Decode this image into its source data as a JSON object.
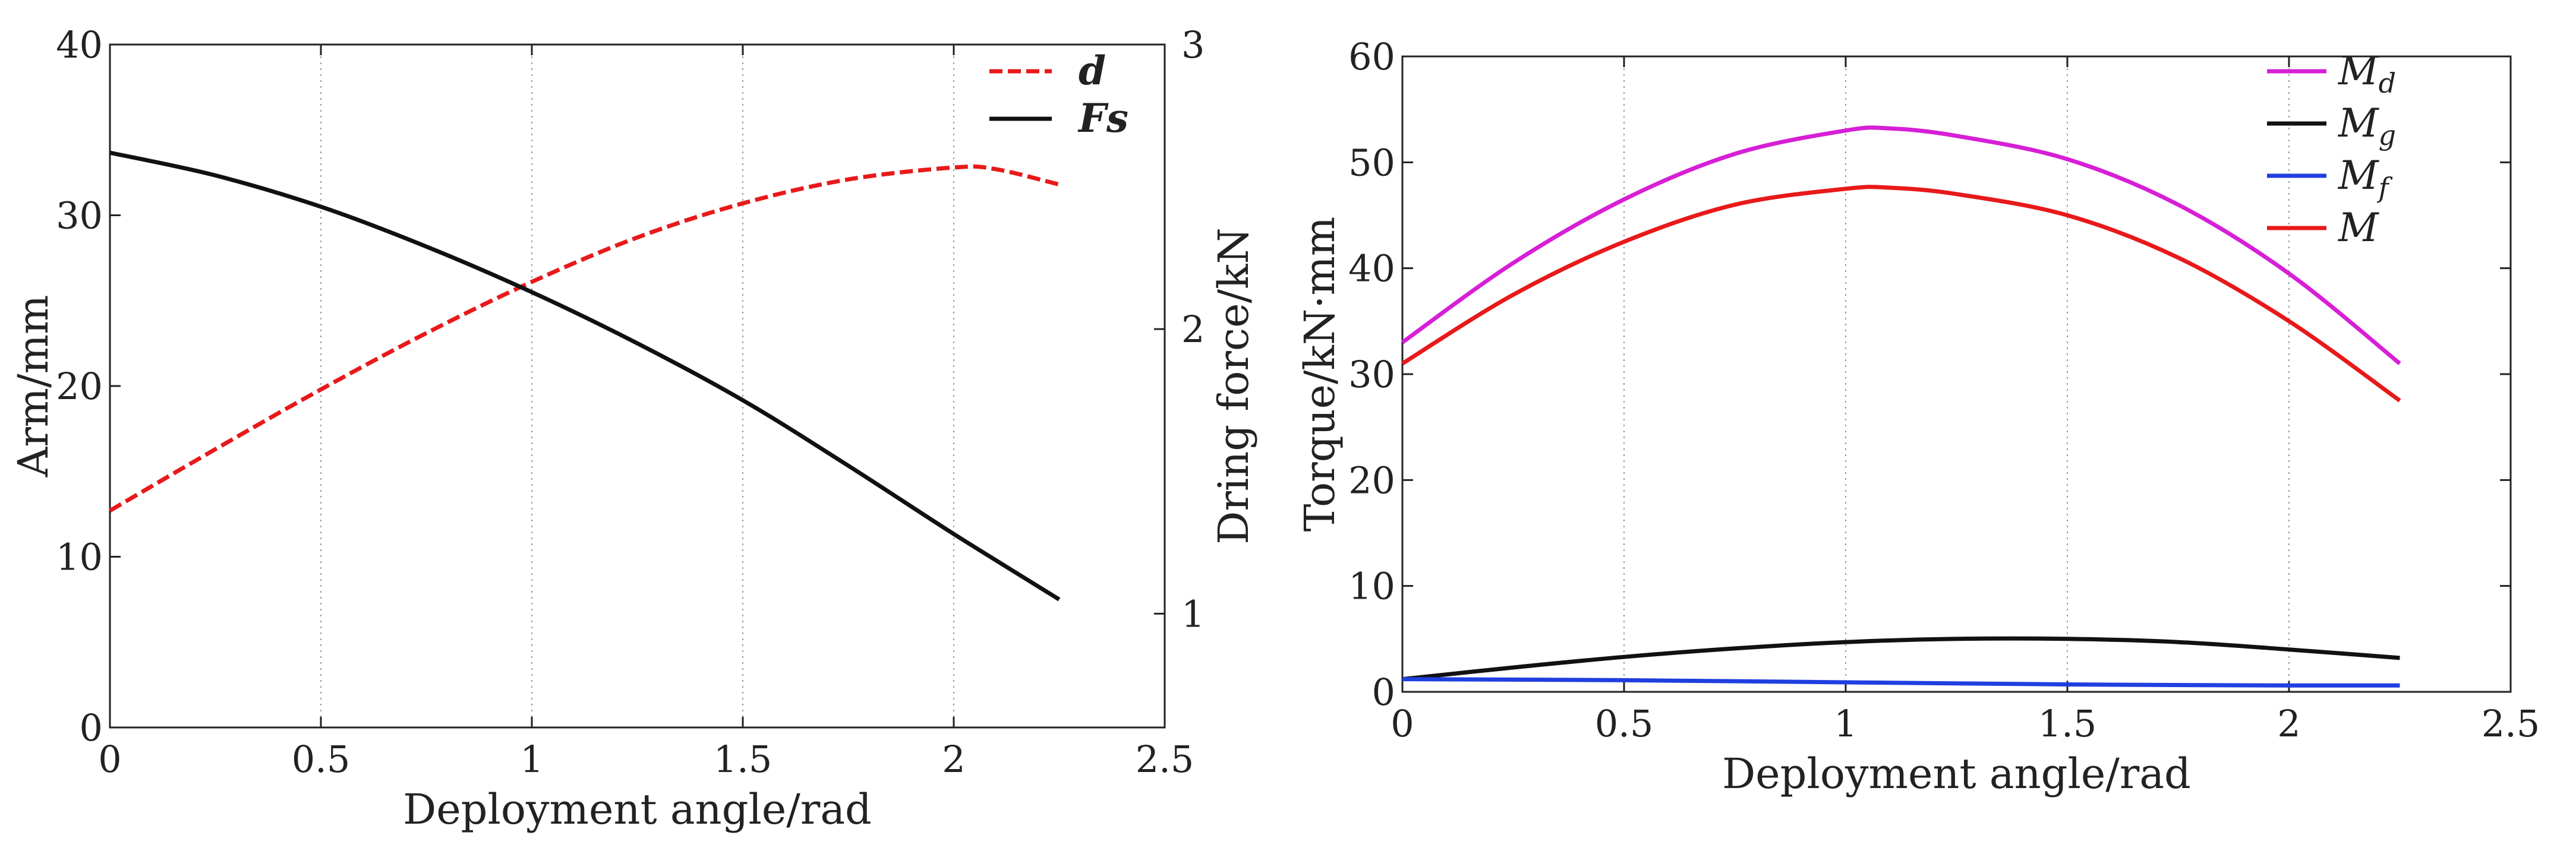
{
  "chart_data": [
    {
      "type": "line",
      "xlabel": "Deployment angle/rad",
      "ylabel": "Arm/mm",
      "y2label": "Dring force/kN",
      "xlim": [
        0,
        2.5
      ],
      "ylim": [
        0,
        40
      ],
      "y2lim": [
        0.6,
        3
      ],
      "xticks": [
        "0",
        "0.5",
        "1",
        "1.5",
        "2",
        "2.5"
      ],
      "yticks": [
        "0",
        "10",
        "20",
        "30",
        "40"
      ],
      "y2ticks": [
        "1",
        "2",
        "3"
      ],
      "grid": "vertical dotted",
      "legend_position": "top-right",
      "series": [
        {
          "name": "d",
          "axis": "left",
          "color": "#e8191a",
          "style": "dashed",
          "x": [
            0,
            0.25,
            0.5,
            0.75,
            1.0,
            1.25,
            1.5,
            1.75,
            2.0,
            2.1,
            2.25
          ],
          "y": [
            12.7,
            16.3,
            19.8,
            23.1,
            26.1,
            28.7,
            30.7,
            32.1,
            32.8,
            32.7,
            31.8
          ]
        },
        {
          "name": "Fs",
          "axis": "right",
          "color": "#111111",
          "style": "solid",
          "x": [
            0,
            0.25,
            0.5,
            0.75,
            1.0,
            1.25,
            1.5,
            1.75,
            2.0,
            2.25
          ],
          "y": [
            2.62,
            2.54,
            2.43,
            2.29,
            2.13,
            1.95,
            1.75,
            1.52,
            1.28,
            1.05
          ]
        }
      ]
    },
    {
      "type": "line",
      "xlabel": "Deployment angle/rad",
      "ylabel": "Torque/kN·mm",
      "xlim": [
        0,
        2.5
      ],
      "ylim": [
        0,
        60
      ],
      "xticks": [
        "0",
        "0.5",
        "1",
        "1.5",
        "2",
        "2.5"
      ],
      "yticks": [
        "0",
        "10",
        "20",
        "30",
        "40",
        "50",
        "60"
      ],
      "grid": "vertical dotted",
      "legend_position": "top-right",
      "series": [
        {
          "name": "M",
          "sub": "d",
          "color": "#d61fd6",
          "x": [
            0,
            0.25,
            0.5,
            0.75,
            1.0,
            1.1,
            1.25,
            1.5,
            1.75,
            2.0,
            2.25
          ],
          "y": [
            33.0,
            40.5,
            46.5,
            50.8,
            53.0,
            53.2,
            52.5,
            50.3,
            46.0,
            39.5,
            31.0
          ]
        },
        {
          "name": "M",
          "sub": "g",
          "color": "#111111",
          "x": [
            0,
            0.25,
            0.5,
            0.75,
            1.0,
            1.25,
            1.5,
            1.75,
            2.0,
            2.25
          ],
          "y": [
            1.2,
            2.3,
            3.3,
            4.1,
            4.7,
            5.0,
            5.0,
            4.7,
            4.0,
            3.2
          ]
        },
        {
          "name": "M",
          "sub": "f",
          "color": "#1f3fe0",
          "x": [
            0,
            0.5,
            1.0,
            1.5,
            2.0,
            2.25
          ],
          "y": [
            1.2,
            1.1,
            0.9,
            0.7,
            0.6,
            0.6
          ]
        },
        {
          "name": "M",
          "sub": "",
          "color": "#e8191a",
          "x": [
            0,
            0.25,
            0.5,
            0.75,
            1.0,
            1.1,
            1.25,
            1.5,
            1.75,
            2.0,
            2.25
          ],
          "y": [
            31.0,
            37.5,
            42.5,
            46.0,
            47.5,
            47.6,
            47.0,
            45.0,
            41.0,
            35.0,
            27.5
          ]
        }
      ]
    }
  ]
}
